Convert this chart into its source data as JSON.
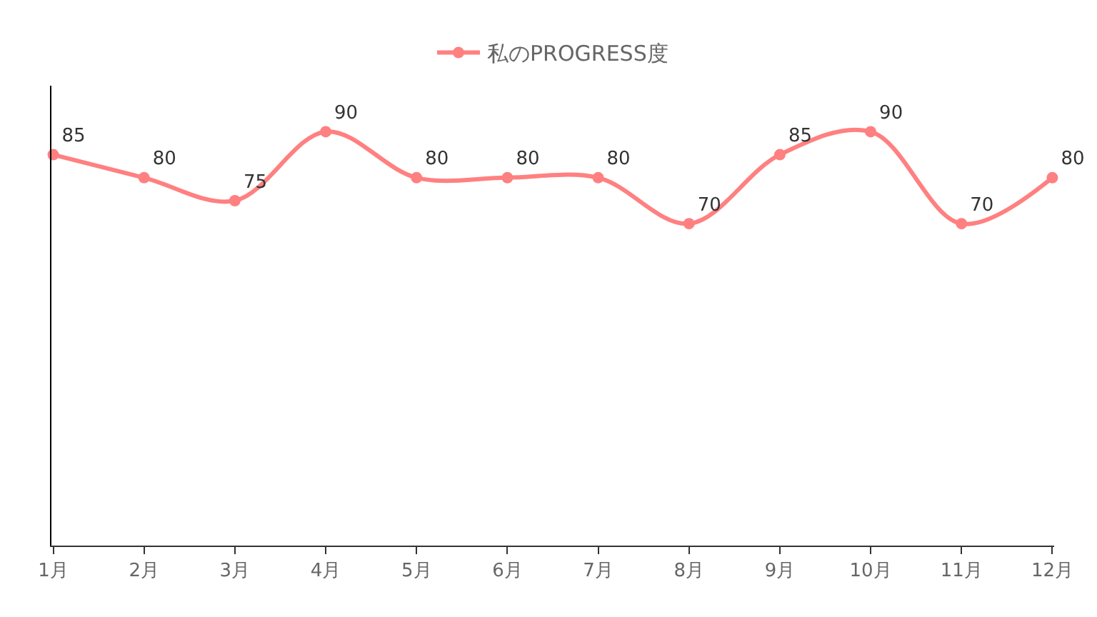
{
  "chart_data": {
    "type": "line",
    "categories": [
      "1月",
      "2月",
      "3月",
      "4月",
      "5月",
      "6月",
      "7月",
      "8月",
      "9月",
      "10月",
      "11月",
      "12月"
    ],
    "series": [
      {
        "name": "私のPROGRESS度",
        "color": "#ff8080",
        "values": [
          85,
          80,
          75,
          90,
          80,
          80,
          80,
          70,
          85,
          90,
          70,
          80
        ]
      }
    ],
    "ylim": [
      0,
      100
    ],
    "tick_labels": "x",
    "data_labels": true,
    "legend": "top",
    "marker": "circle",
    "line_style": "solid"
  }
}
